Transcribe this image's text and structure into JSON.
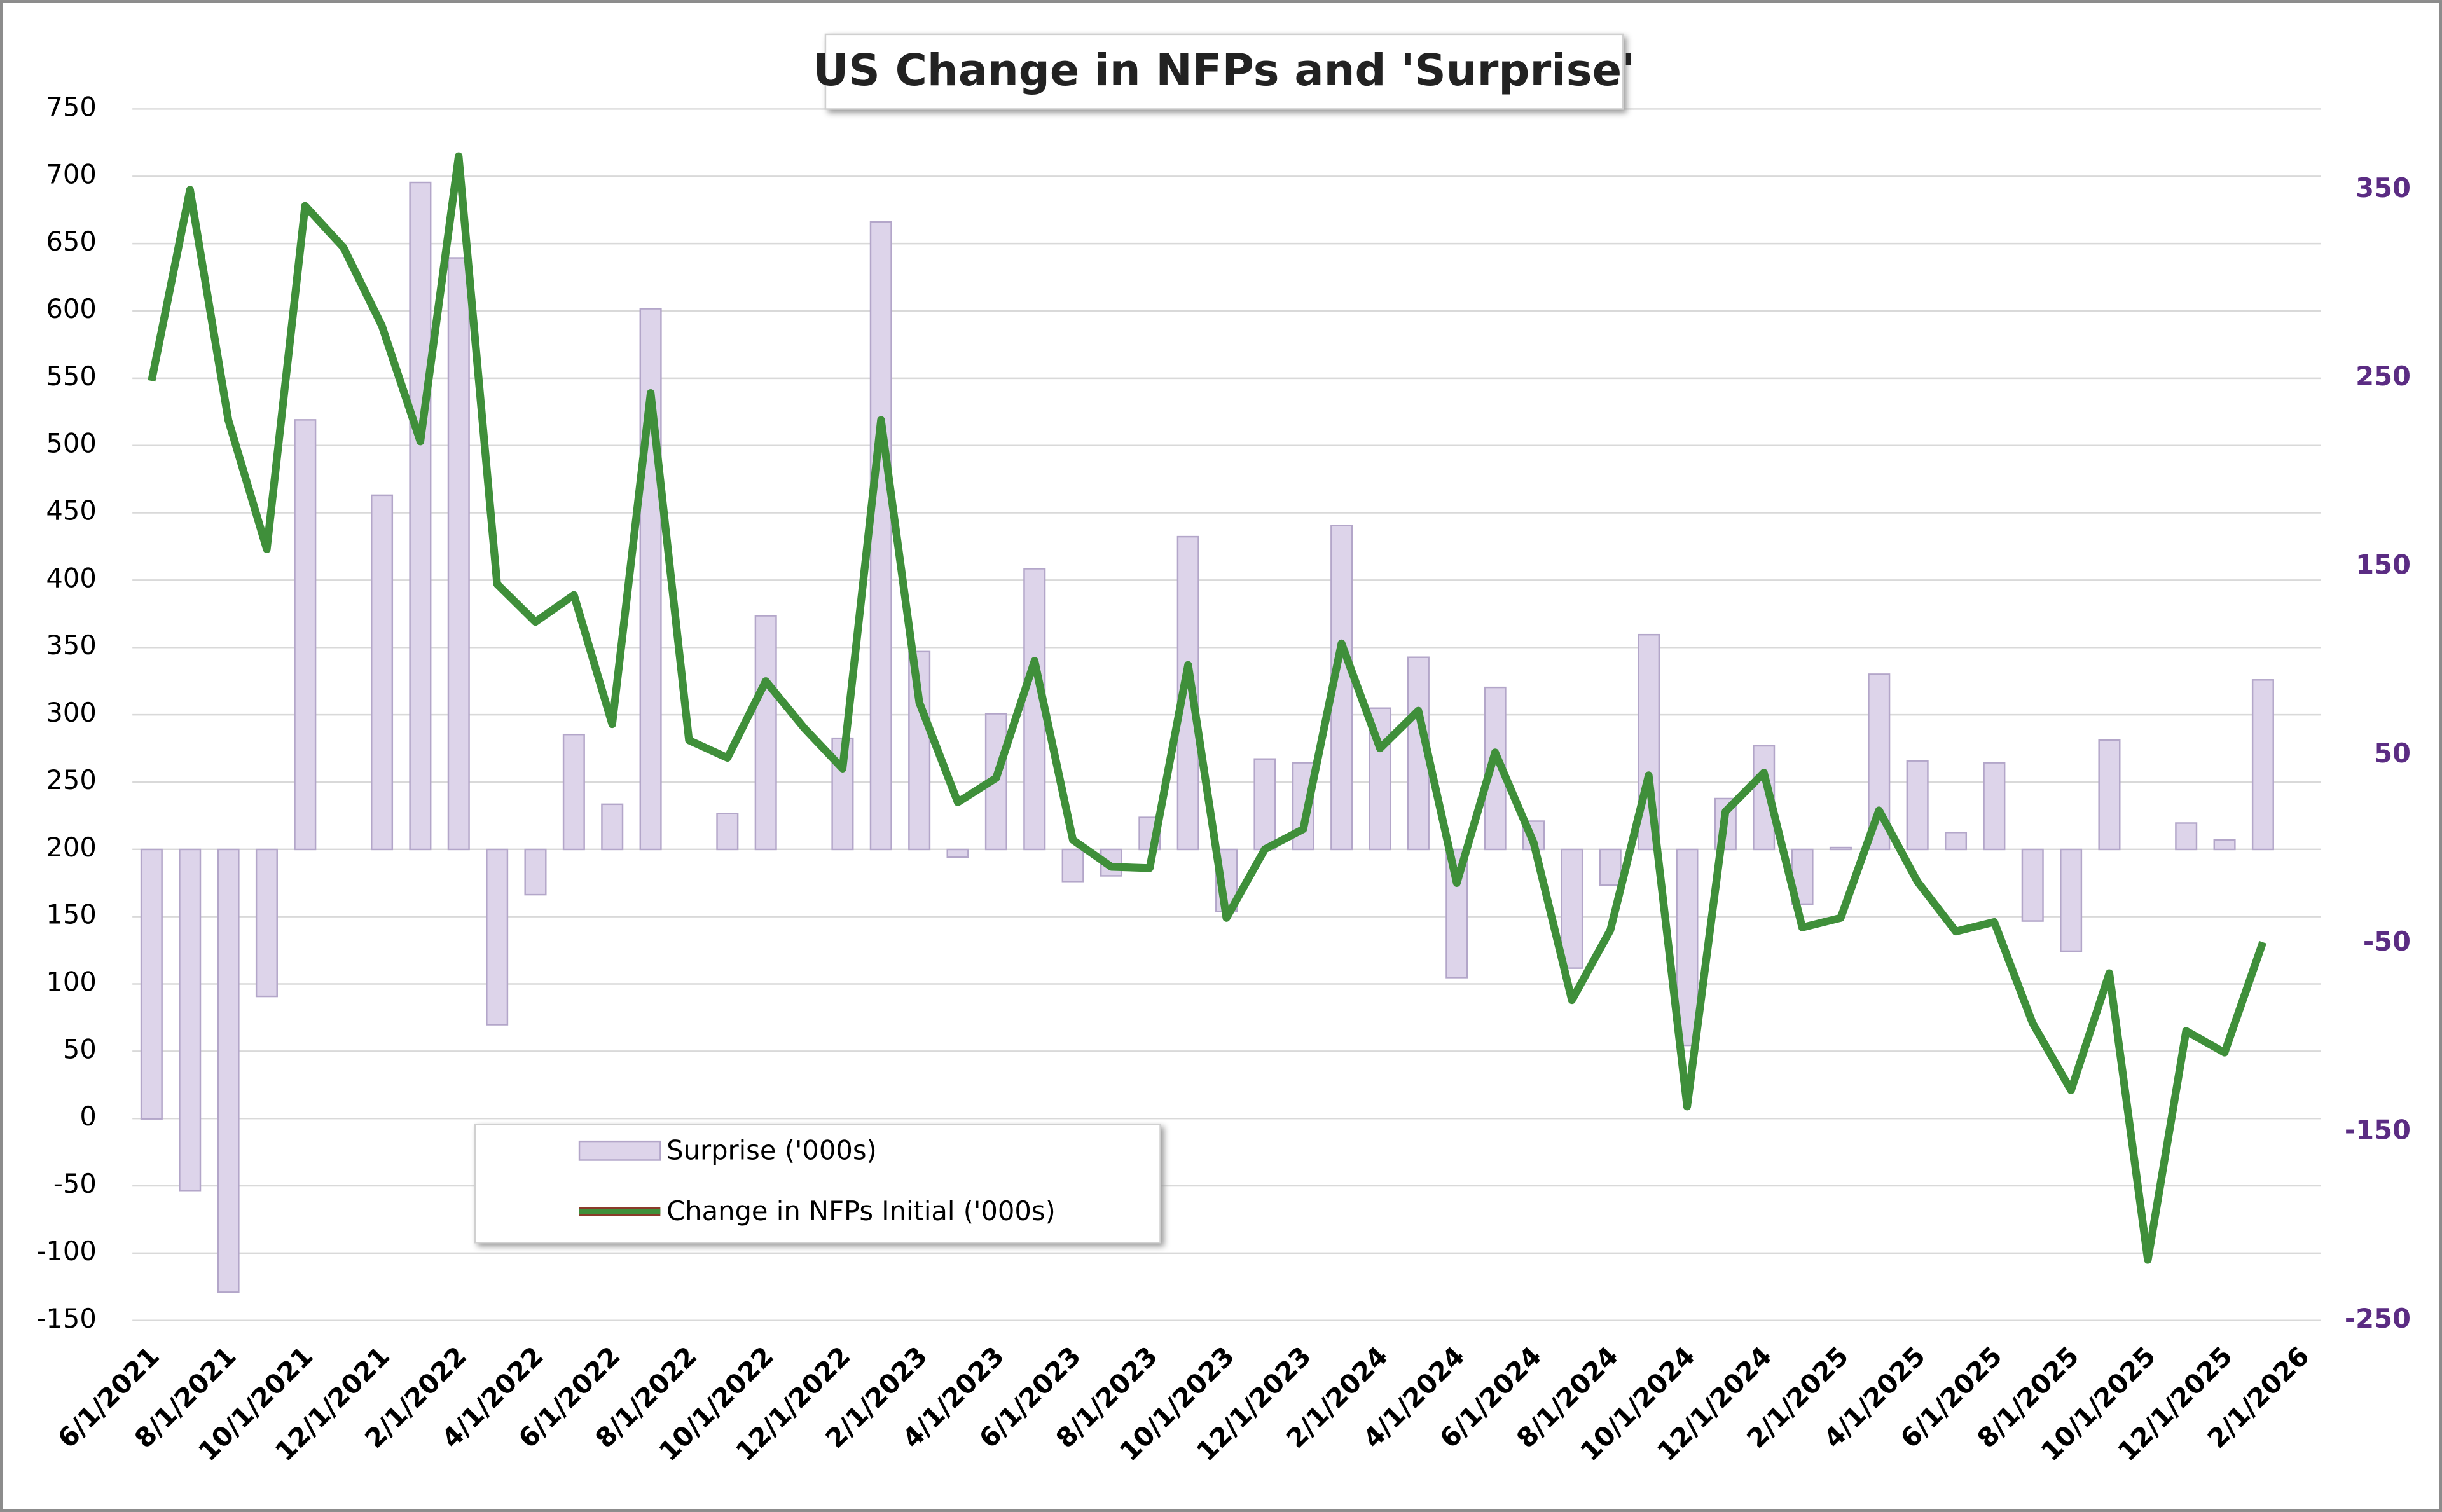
{
  "chart_data": {
    "type": "bar",
    "title": "US Change in NFPs and 'Surprise'",
    "categories": [
      "6/1/2021",
      null,
      "8/1/2021",
      null,
      "10/1/2021",
      null,
      "12/1/2021",
      null,
      "2/1/2022",
      null,
      "4/1/2022",
      null,
      "6/1/2022",
      null,
      "8/1/2022",
      null,
      "10/1/2022",
      null,
      "12/1/2022",
      null,
      "2/1/2023",
      null,
      "4/1/2023",
      null,
      "6/1/2023",
      null,
      "8/1/2023",
      null,
      "10/1/2023",
      null,
      "12/1/2023",
      null,
      "2/1/2024",
      null,
      "4/1/2024",
      null,
      "6/1/2024",
      null,
      "8/1/2024",
      null,
      "10/1/2024",
      null,
      "12/1/2024",
      null,
      "2/1/2025",
      null,
      "4/1/2025",
      null,
      "6/1/2025",
      null,
      "8/1/2025",
      null,
      "10/1/2025",
      null,
      "12/1/2025",
      null,
      "2/1/2026"
    ],
    "series": [
      {
        "name": "Surprise ('000s)",
        "type": "bar",
        "axis": "y2",
        "color": "#ddd4ea",
        "values": [
          -143,
          -181,
          -235,
          -78,
          228,
          0,
          188,
          354,
          314,
          -93,
          -24,
          61,
          24,
          287,
          0,
          19,
          124,
          0,
          59,
          333,
          105,
          -4,
          72,
          149,
          -17,
          -14,
          17,
          166,
          -33,
          48,
          46,
          172,
          75,
          102,
          -68,
          86,
          15,
          -63,
          -19,
          114,
          -104,
          27,
          55,
          -29,
          1,
          93,
          47,
          9,
          46,
          -38,
          -54,
          58,
          0,
          14,
          5,
          90,
          null
        ]
      },
      {
        "name": "Change in NFPs Initial ('000s)",
        "type": "line",
        "axis": "y",
        "color": "#3f8f3a",
        "values": [
          548,
          690,
          519,
          423,
          678,
          647,
          589,
          503,
          715,
          397,
          369,
          389,
          293,
          539,
          281,
          268,
          325,
          290,
          260,
          519,
          309,
          235,
          253,
          340,
          207,
          187,
          186,
          337,
          149,
          200,
          215,
          353,
          275,
          303,
          175,
          272,
          205,
          88,
          140,
          255,
          9,
          228,
          257,
          142,
          149,
          229,
          176,
          139,
          146,
          71,
          21,
          108,
          -105,
          65,
          49,
          131,
          null
        ]
      }
    ],
    "ylim": [
      -150,
      750
    ],
    "yticks": [
      -150,
      -100,
      -50,
      0,
      50,
      100,
      150,
      200,
      250,
      300,
      350,
      400,
      450,
      500,
      550,
      600,
      650,
      700,
      750
    ],
    "y2lim": [
      -250,
      393
    ],
    "y2ticks": [
      -250,
      -150,
      -50,
      50,
      150,
      250,
      350
    ],
    "grid": true,
    "legend": "bottom-left"
  }
}
